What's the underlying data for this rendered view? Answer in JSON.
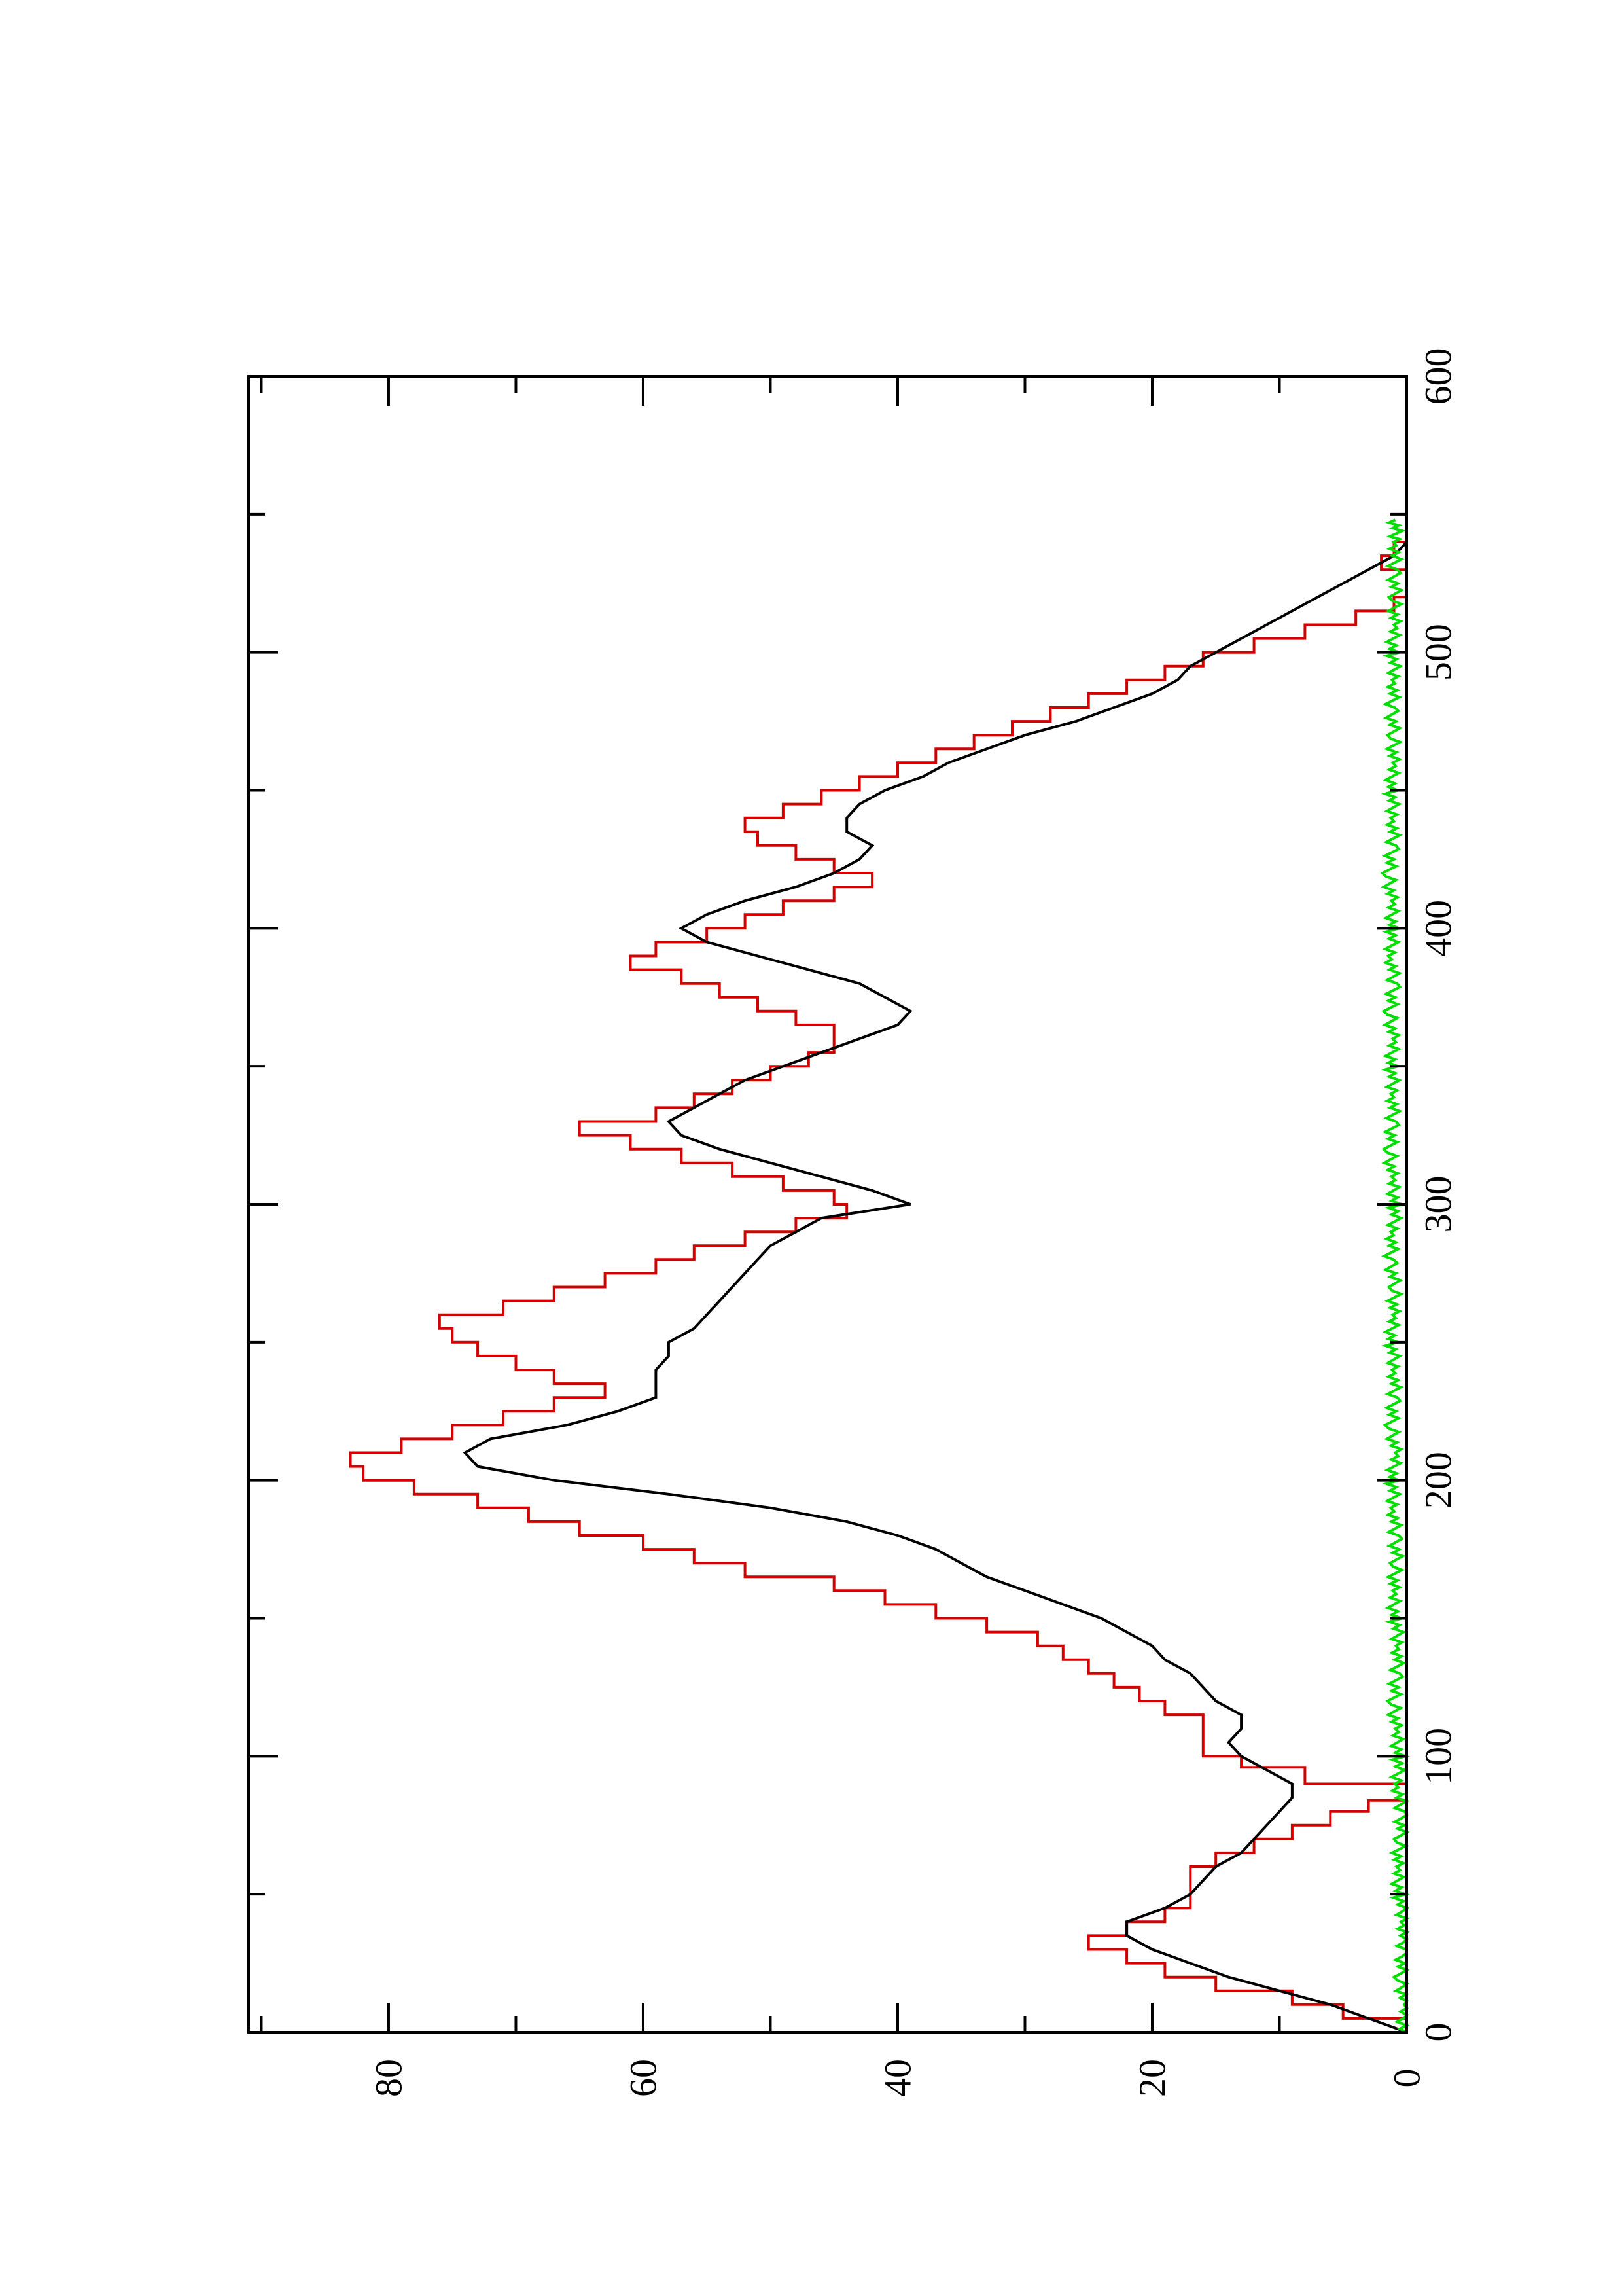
{
  "chart_data": {
    "type": "line",
    "orientation": "rotated-90-ccw",
    "title": "",
    "xlabel": "",
    "ylabel": "",
    "xlim": [
      0,
      600
    ],
    "ylim": [
      0,
      91
    ],
    "x_ticks": [
      0,
      100,
      200,
      300,
      400,
      500,
      600
    ],
    "x_tick_labels": [
      "0",
      "100",
      "200",
      "300",
      "400",
      "500",
      "600"
    ],
    "y_ticks": [
      0,
      20,
      40,
      60,
      80
    ],
    "y_tick_labels": [
      "0",
      "20",
      "40",
      "60",
      "80"
    ],
    "grid": false,
    "legend": "none",
    "series": [
      {
        "color": "#d40000",
        "step": true,
        "x": [
          0,
          5,
          10,
          15,
          20,
          25,
          30,
          35,
          40,
          45,
          55,
          60,
          65,
          70,
          75,
          80,
          84,
          90,
          96,
          100,
          105,
          110,
          115,
          120,
          125,
          130,
          135,
          140,
          145,
          150,
          155,
          160,
          165,
          170,
          175,
          180,
          185,
          190,
          195,
          200,
          205,
          210,
          215,
          220,
          225,
          230,
          235,
          240,
          245,
          250,
          255,
          260,
          265,
          270,
          275,
          280,
          285,
          290,
          295,
          300,
          305,
          310,
          315,
          320,
          325,
          330,
          335,
          340,
          345,
          350,
          355,
          360,
          365,
          370,
          375,
          380,
          385,
          390,
          395,
          400,
          405,
          410,
          415,
          420,
          425,
          430,
          435,
          440,
          445,
          450,
          455,
          460,
          465,
          470,
          475,
          480,
          485,
          490,
          495,
          500,
          505,
          510,
          515,
          520,
          525,
          530,
          535,
          540,
          545,
          548
        ],
        "y": [
          0,
          5,
          9,
          15,
          19,
          22,
          25,
          22,
          19,
          17,
          17,
          15,
          12,
          9,
          6,
          3,
          0,
          8,
          13,
          16,
          16,
          16,
          19,
          21,
          23,
          25,
          27,
          29,
          33,
          37,
          41,
          45,
          52,
          56,
          60,
          65,
          69,
          73,
          78,
          82,
          83,
          79,
          75,
          71,
          67,
          63,
          67,
          70,
          73,
          75,
          76,
          71,
          67,
          63,
          59,
          56,
          52,
          48,
          44,
          45,
          49,
          53,
          57,
          61,
          65,
          59,
          56,
          53,
          50,
          47,
          45,
          45,
          48,
          51,
          54,
          57,
          61,
          59,
          55,
          52,
          49,
          45,
          42,
          45,
          48,
          51,
          52,
          49,
          46,
          43,
          40,
          37,
          34,
          31,
          28,
          25,
          22,
          19,
          16,
          12,
          8,
          4,
          1,
          0,
          0,
          2,
          1,
          0,
          0,
          0
        ]
      },
      {
        "color": "#000000",
        "step": false,
        "x": [
          0,
          5,
          10,
          15,
          20,
          25,
          30,
          35,
          40,
          45,
          50,
          55,
          60,
          65,
          70,
          75,
          80,
          85,
          90,
          95,
          100,
          105,
          110,
          115,
          120,
          125,
          130,
          135,
          140,
          145,
          150,
          155,
          160,
          165,
          170,
          175,
          180,
          185,
          190,
          195,
          200,
          205,
          210,
          215,
          220,
          225,
          230,
          235,
          240,
          245,
          250,
          255,
          260,
          265,
          270,
          275,
          280,
          285,
          290,
          295,
          300,
          305,
          310,
          315,
          320,
          325,
          330,
          335,
          340,
          345,
          350,
          355,
          360,
          365,
          370,
          375,
          380,
          385,
          390,
          395,
          400,
          405,
          410,
          415,
          420,
          425,
          430,
          435,
          440,
          445,
          450,
          455,
          460,
          465,
          470,
          475,
          480,
          485,
          490,
          495,
          500,
          505,
          510,
          515,
          520,
          525,
          530,
          535,
          540,
          545,
          548
        ],
        "y": [
          0,
          3,
          6,
          10,
          14,
          17,
          20,
          22,
          22,
          19,
          17,
          16,
          15,
          13,
          12,
          11,
          10,
          9,
          9,
          11,
          13,
          14,
          13,
          13,
          15,
          16,
          17,
          19,
          20,
          22,
          24,
          27,
          30,
          33,
          35,
          37,
          40,
          44,
          50,
          58,
          67,
          73,
          74,
          72,
          66,
          62,
          59,
          59,
          59,
          58,
          58,
          56,
          55,
          54,
          53,
          52,
          51,
          50,
          48,
          46,
          39,
          42,
          46,
          50,
          54,
          57,
          58,
          56,
          54,
          52,
          49,
          46,
          43,
          40,
          39,
          41,
          43,
          47,
          51,
          55,
          57,
          55,
          52,
          48,
          45,
          43,
          42,
          44,
          44,
          43,
          41,
          38,
          36,
          33,
          30,
          26,
          23,
          20,
          18,
          17,
          15,
          13,
          11,
          9,
          7,
          5,
          3,
          1,
          0,
          0,
          0
        ]
      },
      {
        "color": "#00dd00",
        "step": false,
        "noise": true,
        "x": [
          0,
          10,
          20,
          30,
          40,
          50,
          60,
          70,
          80,
          90,
          100,
          110,
          120,
          130,
          140,
          150,
          160,
          170,
          180,
          190,
          200,
          210,
          220,
          230,
          240,
          250,
          260,
          270,
          280,
          290,
          300,
          310,
          320,
          330,
          340,
          350,
          360,
          370,
          380,
          390,
          400,
          410,
          420,
          430,
          440,
          450,
          460,
          470,
          480,
          490,
          500,
          510,
          520,
          530,
          540,
          548
        ],
        "y": [
          0.3,
          0.2,
          0.5,
          0.3,
          0.2,
          0.6,
          0.8,
          0.5,
          0.4,
          0.7,
          0.6,
          0.9,
          1.0,
          0.8,
          0.6,
          0.9,
          1.1,
          0.8,
          0.9,
          1.0,
          1.1,
          0.9,
          1.2,
          1.0,
          0.9,
          1.2,
          1.1,
          0.9,
          1.3,
          1.0,
          0.9,
          1.2,
          1.3,
          1.1,
          1.0,
          1.2,
          1.1,
          1.3,
          1.0,
          1.2,
          1.1,
          1.2,
          1.4,
          1.1,
          1.0,
          1.2,
          1.1,
          1.0,
          1.2,
          0.9,
          1.1,
          1.0,
          0.9,
          1.0,
          0.8,
          0.9
        ]
      }
    ]
  }
}
